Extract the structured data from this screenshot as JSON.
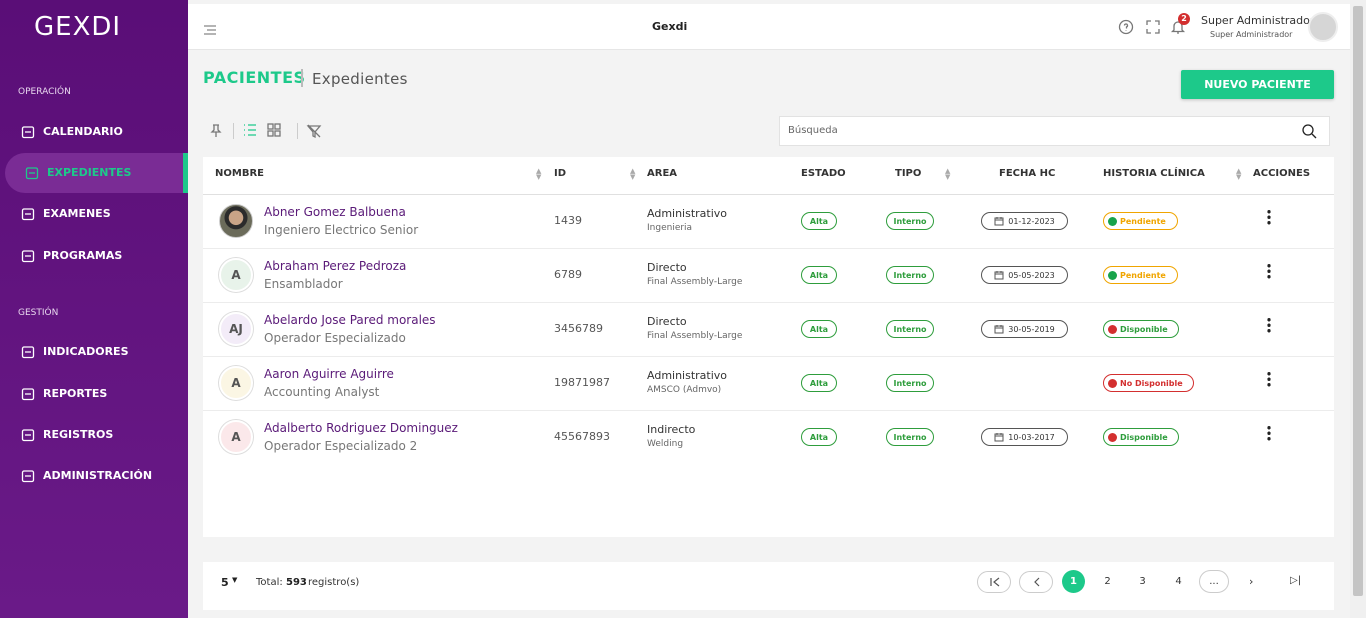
{
  "sidebar": {
    "logo": "GEXDI",
    "sections": [
      {
        "title": "OPERACIÓN",
        "items": [
          "CALENDARIO",
          "EXPEDIENTES",
          "EXAMENES",
          "PROGRAMAS"
        ]
      },
      {
        "title": "GESTIÓN",
        "items": [
          "INDICADORES",
          "REPORTES",
          "REGISTROS",
          "ADMINISTRACIÓN"
        ]
      }
    ]
  },
  "topbar": {
    "title": "Gexdi",
    "notifications": "2",
    "user_name": "Super Administrador",
    "user_role": "Super Administrador"
  },
  "header": {
    "section": "PACIENTES",
    "subsection": "Expedientes",
    "button": "NUEVO PACIENTE",
    "search_placeholder": "Búsqueda"
  },
  "table": {
    "columns": [
      "NOMBRE",
      "ID",
      "AREA",
      "ESTADO",
      "TIPO",
      "FECHA HC",
      "HISTORIA CLÍNICA",
      "ACCIONES"
    ],
    "rows": [
      {
        "name": "Abner Gomez Balbuena",
        "role": "Ingeniero Electrico Senior",
        "id": "1439",
        "area": "Administrativo",
        "subarea": "Ingenieria",
        "estado": "Alta",
        "tipo": "Interno",
        "fecha": "01-12-2023",
        "historia": "Pendiente"
      },
      {
        "initials": "A",
        "name": "Abraham Perez Pedroza",
        "role": "Ensamblador",
        "id": "6789",
        "area": "Directo",
        "subarea": "Final Assembly-Large",
        "estado": "Alta",
        "tipo": "Interno",
        "fecha": "05-05-2023",
        "historia": "Pendiente"
      },
      {
        "initials": "AJ",
        "name": "Abelardo Jose Pared morales",
        "role": "Operador Especializado",
        "id": "3456789",
        "area": "Directo",
        "subarea": "Final Assembly-Large",
        "estado": "Alta",
        "tipo": "Interno",
        "fecha": "30-05-2019",
        "historia": "Disponible"
      },
      {
        "initials": "A",
        "name": "Aaron Aguirre Aguirre",
        "role": "Accounting Analyst",
        "id": "19871987",
        "area": "Administrativo",
        "subarea": "AMSCO (Admvo)",
        "estado": "Alta",
        "tipo": "Interno",
        "fecha": null,
        "historia": "No Disponible"
      },
      {
        "initials": "A",
        "name": "Adalberto Rodriguez Dominguez",
        "role": "Operador Especializado 2",
        "id": "45567893",
        "area": "Indirecto",
        "subarea": "Welding",
        "estado": "Alta",
        "tipo": "Interno",
        "fecha": "10-03-2017",
        "historia": "Disponible"
      }
    ]
  },
  "footer": {
    "page_size": "5",
    "total_label": "Total:",
    "total": "593",
    "total_unit": "registro(s)",
    "pages": [
      "1",
      "2",
      "3",
      "4",
      "..."
    ]
  }
}
